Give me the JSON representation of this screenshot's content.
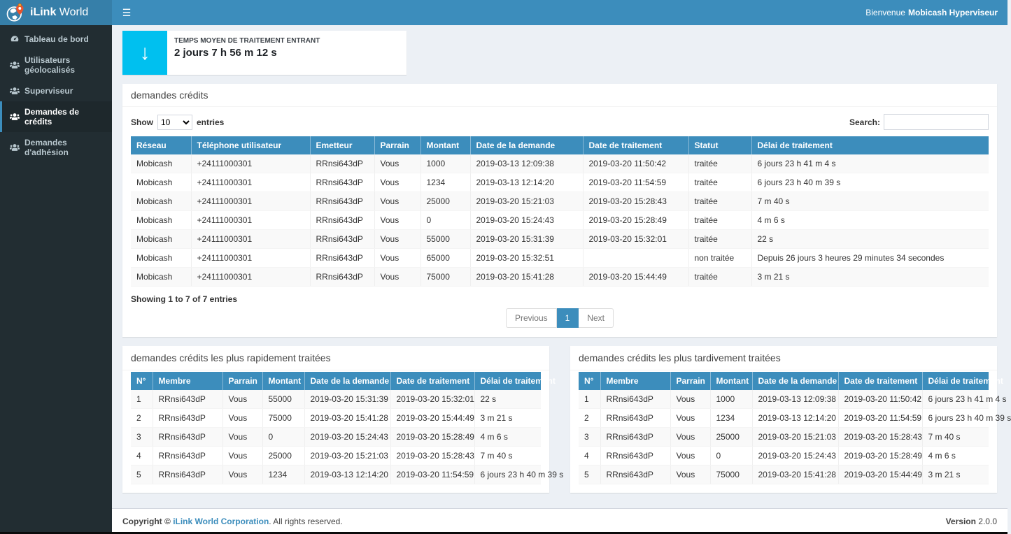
{
  "brand": {
    "bold": "iLink",
    "light": " World"
  },
  "topbar": {
    "hamburger": "☰",
    "welcome_prefix": "Bienvenue",
    "welcome_user": "Mobicash Hyperviseur"
  },
  "sidebar": {
    "items": [
      {
        "label": "Tableau de bord",
        "icon": "tachometer-icon",
        "active": false
      },
      {
        "label": "Utilisateurs géolocalisés",
        "icon": "users-icon",
        "active": false
      },
      {
        "label": "Superviseur",
        "icon": "users-icon",
        "active": false
      },
      {
        "label": "Demandes de crédits",
        "icon": "users-icon",
        "active": true
      },
      {
        "label": "Demandes d'adhésion",
        "icon": "users-icon",
        "active": false
      }
    ]
  },
  "stat_card": {
    "icon": "down-arrow-icon",
    "arrow_glyph": "↓",
    "color": "#00c0ef",
    "label": "TEMPS MOYEN DE TRAITEMENT ENTRANT",
    "value": "2 jours 7 h 56 m 12 s"
  },
  "main_table": {
    "title": "demandes crédits",
    "show_label": "Show",
    "page_size": "10",
    "entries_label": "entries",
    "search_label": "Search:",
    "search_value": "",
    "columns": [
      "Réseau",
      "Téléphone utilisateur",
      "Emetteur",
      "Parrain",
      "Montant",
      "Date de la demande",
      "Date de traitement",
      "Statut",
      "Délai de traitement"
    ],
    "rows": [
      [
        "Mobicash",
        "+24111000301",
        "RRnsi643dP",
        "Vous",
        "1000",
        "2019-03-13 12:09:38",
        "2019-03-20 11:50:42",
        "traitée",
        "6 jours 23 h 41 m 4 s"
      ],
      [
        "Mobicash",
        "+24111000301",
        "RRnsi643dP",
        "Vous",
        "1234",
        "2019-03-13 12:14:20",
        "2019-03-20 11:54:59",
        "traitée",
        "6 jours 23 h 40 m 39 s"
      ],
      [
        "Mobicash",
        "+24111000301",
        "RRnsi643dP",
        "Vous",
        "25000",
        "2019-03-20 15:21:03",
        "2019-03-20 15:28:43",
        "traitée",
        "7 m 40 s"
      ],
      [
        "Mobicash",
        "+24111000301",
        "RRnsi643dP",
        "Vous",
        "0",
        "2019-03-20 15:24:43",
        "2019-03-20 15:28:49",
        "traitée",
        "4 m 6 s"
      ],
      [
        "Mobicash",
        "+24111000301",
        "RRnsi643dP",
        "Vous",
        "55000",
        "2019-03-20 15:31:39",
        "2019-03-20 15:32:01",
        "traitée",
        "22 s"
      ],
      [
        "Mobicash",
        "+24111000301",
        "RRnsi643dP",
        "Vous",
        "65000",
        "2019-03-20 15:32:51",
        "",
        "non traitée",
        "Depuis 26 jours 3 heures 29 minutes 34 secondes"
      ],
      [
        "Mobicash",
        "+24111000301",
        "RRnsi643dP",
        "Vous",
        "75000",
        "2019-03-20 15:41:28",
        "2019-03-20 15:44:49",
        "traitée",
        "3 m 21 s"
      ]
    ],
    "info": "Showing 1 to 7 of 7 entries",
    "pagination": {
      "previous": "Previous",
      "page": "1",
      "next": "Next"
    }
  },
  "fast_table": {
    "title": "demandes crédits les plus rapidement traitées",
    "columns": [
      "N°",
      "Membre",
      "Parrain",
      "Montant",
      "Date de la demande",
      "Date de traitement",
      "Délai de traitement"
    ],
    "rows": [
      [
        "1",
        "RRnsi643dP",
        "Vous",
        "55000",
        "2019-03-20 15:31:39",
        "2019-03-20 15:32:01",
        "22 s"
      ],
      [
        "2",
        "RRnsi643dP",
        "Vous",
        "75000",
        "2019-03-20 15:41:28",
        "2019-03-20 15:44:49",
        "3 m 21 s"
      ],
      [
        "3",
        "RRnsi643dP",
        "Vous",
        "0",
        "2019-03-20 15:24:43",
        "2019-03-20 15:28:49",
        "4 m 6 s"
      ],
      [
        "4",
        "RRnsi643dP",
        "Vous",
        "25000",
        "2019-03-20 15:21:03",
        "2019-03-20 15:28:43",
        "7 m 40 s"
      ],
      [
        "5",
        "RRnsi643dP",
        "Vous",
        "1234",
        "2019-03-13 12:14:20",
        "2019-03-20 11:54:59",
        "6 jours 23 h 40 m 39 s"
      ]
    ]
  },
  "late_table": {
    "title": "demandes crédits les plus tardivement traitées",
    "columns": [
      "N°",
      "Membre",
      "Parrain",
      "Montant",
      "Date de la demande",
      "Date de traitement",
      "Délai de traitement"
    ],
    "rows": [
      [
        "1",
        "RRnsi643dP",
        "Vous",
        "1000",
        "2019-03-13 12:09:38",
        "2019-03-20 11:50:42",
        "6 jours 23 h 41 m 4 s"
      ],
      [
        "2",
        "RRnsi643dP",
        "Vous",
        "1234",
        "2019-03-13 12:14:20",
        "2019-03-20 11:54:59",
        "6 jours 23 h 40 m 39 s"
      ],
      [
        "3",
        "RRnsi643dP",
        "Vous",
        "25000",
        "2019-03-20 15:21:03",
        "2019-03-20 15:28:43",
        "7 m 40 s"
      ],
      [
        "4",
        "RRnsi643dP",
        "Vous",
        "0",
        "2019-03-20 15:24:43",
        "2019-03-20 15:28:49",
        "4 m 6 s"
      ],
      [
        "5",
        "RRnsi643dP",
        "Vous",
        "75000",
        "2019-03-20 15:41:28",
        "2019-03-20 15:44:49",
        "3 m 21 s"
      ]
    ]
  },
  "footer": {
    "copyright_bold": "Copyright ©",
    "company": "iLink World Corporation",
    "rights": ". All rights reserved.",
    "version_label": "Version",
    "version": "2.0.0"
  },
  "colors": {
    "topbar": "#3c8dbc",
    "brand_bg": "#367fa9",
    "sidebar_bg": "#222d32",
    "sidebar_active_bg": "#1e282c",
    "accent_blue": "#3c8dbc",
    "stat_aqua": "#00c0ef",
    "content_bg": "#ecf0f5",
    "pin_orange": "#e8542e"
  }
}
